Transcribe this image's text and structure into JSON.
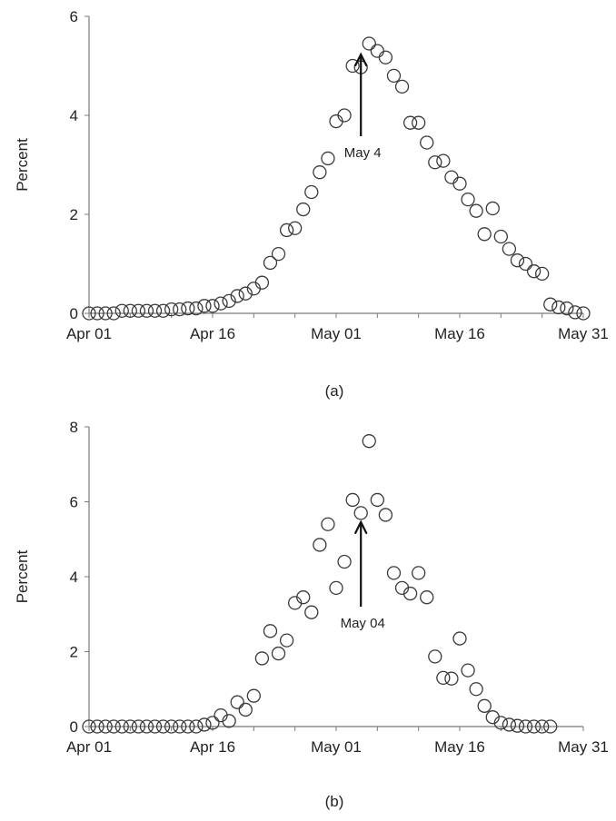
{
  "chart_data": [
    {
      "type": "scatter",
      "panel_label": "(a)",
      "ylabel": "Percent",
      "ylim": [
        0,
        6
      ],
      "yticks": [
        0,
        2,
        4,
        6
      ],
      "x_dates": [
        "Apr 01",
        "Apr 02",
        "Apr 03",
        "Apr 04",
        "Apr 05",
        "Apr 06",
        "Apr 07",
        "Apr 08",
        "Apr 09",
        "Apr 10",
        "Apr 11",
        "Apr 12",
        "Apr 13",
        "Apr 14",
        "Apr 15",
        "Apr 16",
        "Apr 17",
        "Apr 18",
        "Apr 19",
        "Apr 20",
        "Apr 21",
        "Apr 22",
        "Apr 23",
        "Apr 24",
        "Apr 25",
        "Apr 26",
        "Apr 27",
        "Apr 28",
        "Apr 29",
        "Apr 30",
        "May 01",
        "May 02",
        "May 03",
        "May 04",
        "May 05",
        "May 06",
        "May 07",
        "May 08",
        "May 09",
        "May 10",
        "May 11",
        "May 12",
        "May 13",
        "May 14",
        "May 15",
        "May 16",
        "May 17",
        "May 18",
        "May 19",
        "May 20",
        "May 21",
        "May 22",
        "May 23",
        "May 24",
        "May 25",
        "May 26",
        "May 27",
        "May 28",
        "May 29",
        "May 30",
        "May 31"
      ],
      "values": [
        0.0,
        0.0,
        0.0,
        0.0,
        0.05,
        0.05,
        0.05,
        0.05,
        0.05,
        0.05,
        0.08,
        0.08,
        0.1,
        0.1,
        0.15,
        0.15,
        0.2,
        0.25,
        0.35,
        0.4,
        0.5,
        0.62,
        1.02,
        1.2,
        1.68,
        1.72,
        2.1,
        2.45,
        2.85,
        3.13,
        3.88,
        4.0,
        5.0,
        4.97,
        5.45,
        5.3,
        5.17,
        4.8,
        4.58,
        3.85,
        3.85,
        3.45,
        3.05,
        3.08,
        2.75,
        2.62,
        2.3,
        2.07,
        1.6,
        2.12,
        1.55,
        1.3,
        1.07,
        1.0,
        0.85,
        0.8,
        0.18,
        0.12,
        0.1,
        0.02,
        0.0
      ],
      "xticks": [
        "Apr 01",
        "Apr 16",
        "May 01",
        "May 16",
        "May 31"
      ],
      "annotation": {
        "text": "May 4",
        "x_date": "May 04"
      }
    },
    {
      "type": "scatter",
      "panel_label": "(b)",
      "ylabel": "Percent",
      "ylim": [
        0,
        8
      ],
      "yticks": [
        0,
        2,
        4,
        6,
        8
      ],
      "x_dates": [
        "Apr 01",
        "Apr 02",
        "Apr 03",
        "Apr 04",
        "Apr 05",
        "Apr 06",
        "Apr 07",
        "Apr 08",
        "Apr 09",
        "Apr 10",
        "Apr 11",
        "Apr 12",
        "Apr 13",
        "Apr 14",
        "Apr 15",
        "Apr 16",
        "Apr 17",
        "Apr 18",
        "Apr 19",
        "Apr 20",
        "Apr 21",
        "Apr 22",
        "Apr 23",
        "Apr 24",
        "Apr 25",
        "Apr 26",
        "Apr 27",
        "Apr 28",
        "Apr 29",
        "Apr 30",
        "May 01",
        "May 02",
        "May 03",
        "May 04",
        "May 05",
        "May 06",
        "May 07",
        "May 08",
        "May 09",
        "May 10",
        "May 11",
        "May 12",
        "May 13",
        "May 14",
        "May 15",
        "May 16",
        "May 17",
        "May 18",
        "May 19",
        "May 20",
        "May 21",
        "May 22",
        "May 23",
        "May 24",
        "May 25",
        "May 26",
        "May 27"
      ],
      "values": [
        0.0,
        0.0,
        0.0,
        0.0,
        0.0,
        0.0,
        0.0,
        0.0,
        0.0,
        0.0,
        0.0,
        0.0,
        0.0,
        0.0,
        0.05,
        0.1,
        0.3,
        0.15,
        0.65,
        0.45,
        0.82,
        1.82,
        2.55,
        1.95,
        2.3,
        3.3,
        3.45,
        3.05,
        4.85,
        5.4,
        3.7,
        4.4,
        6.05,
        5.7,
        7.62,
        6.05,
        5.65,
        4.1,
        3.7,
        3.55,
        4.1,
        3.45,
        1.87,
        1.3,
        1.28,
        2.35,
        1.5,
        1.0,
        0.55,
        0.25,
        0.1,
        0.05,
        0.02,
        0.0,
        0.0,
        0.0,
        0.0
      ],
      "xticks": [
        "Apr 01",
        "Apr 16",
        "May 01",
        "May 16",
        "May 31"
      ],
      "annotation": {
        "text": "May 04",
        "x_date": "May 04"
      }
    }
  ]
}
